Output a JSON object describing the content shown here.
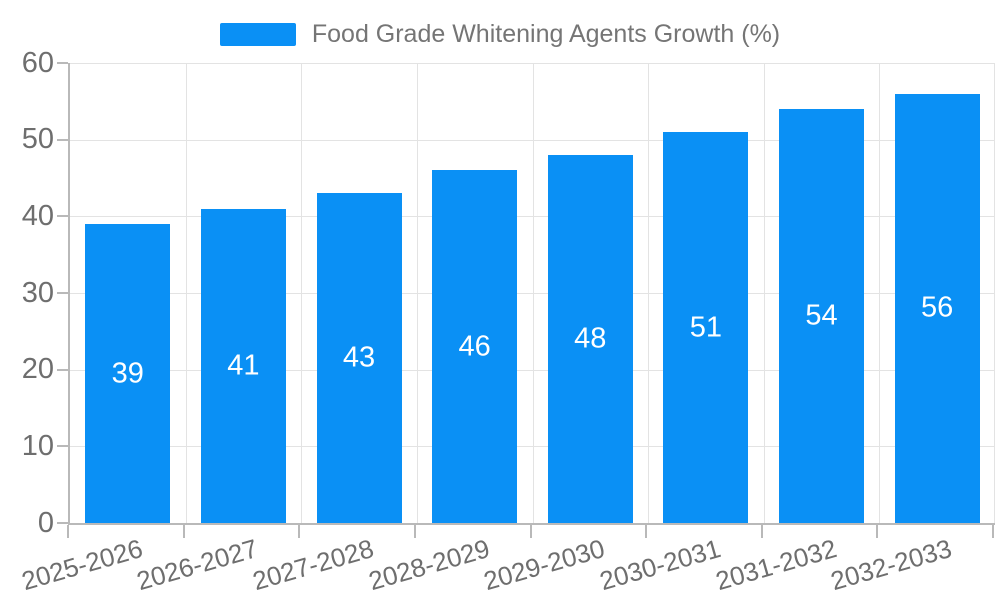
{
  "chart_data": {
    "type": "bar",
    "title": "Food Grade Whitening Agents Growth (%)",
    "categories": [
      "2025-2026",
      "2026-2027",
      "2027-2028",
      "2028-2029",
      "2029-2030",
      "2030-2031",
      "2031-2032",
      "2032-2033"
    ],
    "values": [
      39,
      41,
      43,
      46,
      48,
      51,
      54,
      56
    ],
    "xlabel": "",
    "ylabel": "",
    "ylim": [
      0,
      60
    ],
    "yticks": [
      0,
      10,
      20,
      30,
      40,
      50,
      60
    ],
    "grid": true,
    "legend_position": "top-center",
    "series_color": "#0A90F5",
    "value_label_color": "#FFFFFF"
  },
  "colors": {
    "accent_blue": "#0A90F5",
    "tick_text_gray": "#6E6E6E",
    "legend_text_gray": "#757575",
    "gridline_gray": "#E3E3E3",
    "axis_gray": "#B9B9B9"
  }
}
